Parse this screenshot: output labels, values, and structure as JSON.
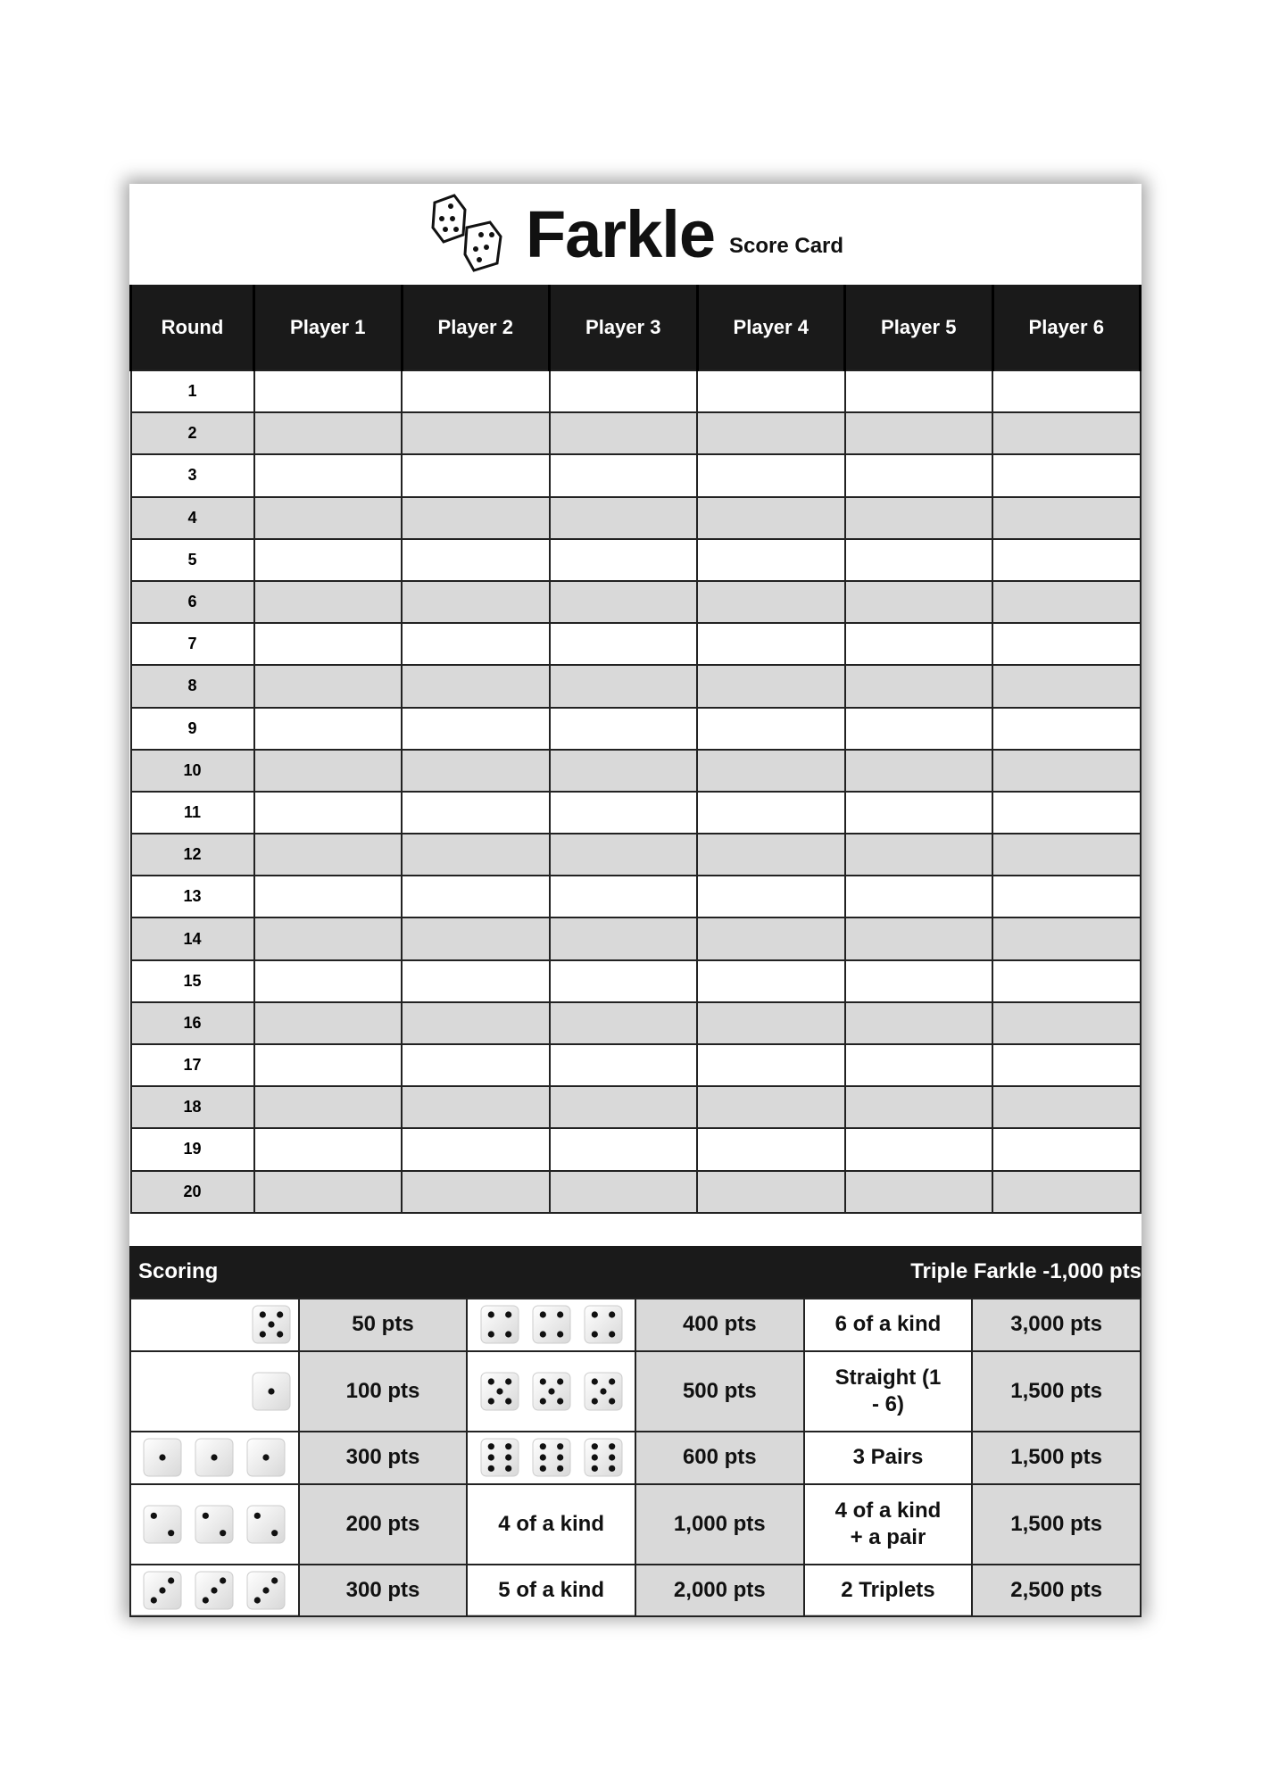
{
  "title": {
    "main": "Farkle",
    "sub": "Score Card"
  },
  "table": {
    "headers": [
      "Round",
      "Player 1",
      "Player 2",
      "Player 3",
      "Player 4",
      "Player 5",
      "Player 6"
    ],
    "rounds": [
      "1",
      "2",
      "3",
      "4",
      "5",
      "6",
      "7",
      "8",
      "9",
      "10",
      "11",
      "12",
      "13",
      "14",
      "15",
      "16",
      "17",
      "18",
      "19",
      "20"
    ]
  },
  "scoring": {
    "title": "Scoring",
    "note": "Triple Farkle -1,000 pts",
    "rows": [
      {
        "dice1": [
          5
        ],
        "pts1": "50 pts",
        "dice2": [
          4,
          4,
          4
        ],
        "pts2": "400 pts",
        "combo": "6 of a kind",
        "pts3": "3,000 pts"
      },
      {
        "dice1": [
          1
        ],
        "pts1": "100 pts",
        "dice2": [
          5,
          5,
          5
        ],
        "pts2": "500 pts",
        "combo": "Straight (1 - 6)",
        "pts3": "1,500 pts"
      },
      {
        "dice1": [
          1,
          1,
          1
        ],
        "pts1": "300 pts",
        "dice2": [
          6,
          6,
          6
        ],
        "pts2": "600 pts",
        "combo": "3 Pairs",
        "pts3": "1,500 pts"
      },
      {
        "dice1": [
          2,
          2,
          2
        ],
        "pts1": "200 pts",
        "label2": "4 of a kind",
        "pts2": "1,000 pts",
        "combo": "4 of a kind + a pair",
        "pts3": "1,500 pts"
      },
      {
        "dice1": [
          3,
          3,
          3
        ],
        "pts1": "300 pts",
        "label2": "5 of a kind",
        "pts2": "2,000 pts",
        "combo": "2 Triplets",
        "pts3": "2,500 pts"
      }
    ]
  }
}
